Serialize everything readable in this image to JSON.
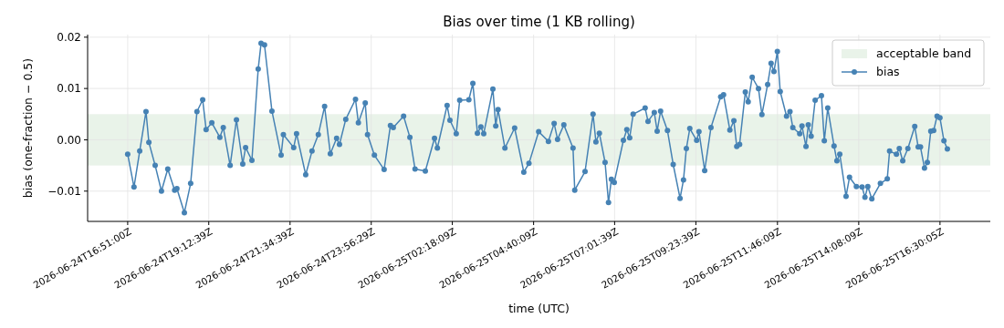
{
  "chart_data": {
    "type": "line",
    "title": "Bias over time (1 KB rolling)",
    "xlabel": "time (UTC)",
    "ylabel": "bias (one-fraction − 0.5)",
    "x": [
      "2026-06-24T16:51",
      "2026-06-24T17:02",
      "2026-06-24T17:12",
      "2026-06-24T17:23",
      "2026-06-24T17:28",
      "2026-06-24T17:39",
      "2026-06-24T17:50",
      "2026-06-24T18:01",
      "2026-06-24T18:13",
      "2026-06-24T18:17",
      "2026-06-24T18:30",
      "2026-06-24T18:41",
      "2026-06-24T18:52",
      "2026-06-24T19:02",
      "2026-06-24T19:08",
      "2026-06-24T19:18",
      "2026-06-24T19:32",
      "2026-06-24T19:38",
      "2026-06-24T19:50",
      "2026-06-24T20:01",
      "2026-06-24T20:12",
      "2026-06-24T20:17",
      "2026-06-24T20:28",
      "2026-06-24T20:39",
      "2026-06-24T20:44",
      "2026-06-24T20:50",
      "2026-06-24T21:03",
      "2026-06-24T21:19",
      "2026-06-24T21:23",
      "2026-06-24T21:41",
      "2026-06-24T21:46",
      "2026-06-24T22:02",
      "2026-06-24T22:13",
      "2026-06-24T22:24",
      "2026-06-24T22:35",
      "2026-06-24T22:45",
      "2026-06-24T22:56",
      "2026-06-24T23:01",
      "2026-06-24T23:12",
      "2026-06-24T23:29",
      "2026-06-24T23:34",
      "2026-06-24T23:46",
      "2026-06-24T23:50",
      "2026-06-25T00:02",
      "2026-06-25T00:19",
      "2026-06-25T00:30",
      "2026-06-25T00:35",
      "2026-06-25T00:53",
      "2026-06-25T01:04",
      "2026-06-25T01:13",
      "2026-06-25T01:31",
      "2026-06-25T01:47",
      "2026-06-25T01:52",
      "2026-06-25T02:09",
      "2026-06-25T02:14",
      "2026-06-25T02:25",
      "2026-06-25T02:31",
      "2026-06-25T02:47",
      "2026-06-25T02:54",
      "2026-06-25T03:02",
      "2026-06-25T03:08",
      "2026-06-25T03:13",
      "2026-06-25T03:29",
      "2026-06-25T03:34",
      "2026-06-25T03:38",
      "2026-06-25T03:50",
      "2026-06-25T04:07",
      "2026-06-25T04:23",
      "2026-06-25T04:32",
      "2026-06-25T04:49",
      "2026-06-25T05:06",
      "2026-06-25T05:16",
      "2026-06-25T05:22",
      "2026-06-25T05:33",
      "2026-06-25T05:49",
      "2026-06-25T05:52",
      "2026-06-25T06:10",
      "2026-06-25T06:24",
      "2026-06-25T06:29",
      "2026-06-25T06:35",
      "2026-06-25T06:45",
      "2026-06-25T06:51",
      "2026-06-25T06:56",
      "2026-06-25T07:01",
      "2026-06-25T07:17",
      "2026-06-25T07:23",
      "2026-06-25T07:28",
      "2026-06-25T07:34",
      "2026-06-25T07:55",
      "2026-06-25T08:00",
      "2026-06-25T08:11",
      "2026-06-25T08:16",
      "2026-06-25T08:22",
      "2026-06-25T08:34",
      "2026-06-25T08:44",
      "2026-06-25T08:56",
      "2026-06-25T09:02",
      "2026-06-25T09:07",
      "2026-06-25T09:13",
      "2026-06-25T09:25",
      "2026-06-25T09:29",
      "2026-06-25T09:39",
      "2026-06-25T09:50",
      "2026-06-25T10:07",
      "2026-06-25T10:12",
      "2026-06-25T10:23",
      "2026-06-25T10:30",
      "2026-06-25T10:35",
      "2026-06-25T10:40",
      "2026-06-25T10:50",
      "2026-06-25T10:55",
      "2026-06-25T11:02",
      "2026-06-25T11:13",
      "2026-06-25T11:19",
      "2026-06-25T11:29",
      "2026-06-25T11:35",
      "2026-06-25T11:40",
      "2026-06-25T11:46",
      "2026-06-25T11:51",
      "2026-06-25T12:02",
      "2026-06-25T12:08",
      "2026-06-25T12:13",
      "2026-06-25T12:25",
      "2026-06-25T12:29",
      "2026-06-25T12:36",
      "2026-06-25T12:40",
      "2026-06-25T12:45",
      "2026-06-25T12:52",
      "2026-06-25T13:03",
      "2026-06-25T13:08",
      "2026-06-25T13:14",
      "2026-06-25T13:25",
      "2026-06-25T13:30",
      "2026-06-25T13:35",
      "2026-06-25T13:46",
      "2026-06-25T13:52",
      "2026-06-25T14:04",
      "2026-06-25T14:14",
      "2026-06-25T14:19",
      "2026-06-25T14:24",
      "2026-06-25T14:31",
      "2026-06-25T14:46",
      "2026-06-25T14:58",
      "2026-06-25T15:02",
      "2026-06-25T15:14",
      "2026-06-25T15:19",
      "2026-06-25T15:25",
      "2026-06-25T15:34",
      "2026-06-25T15:46",
      "2026-06-25T15:52",
      "2026-06-25T15:56",
      "2026-06-25T16:03",
      "2026-06-25T16:08",
      "2026-06-25T16:14",
      "2026-06-25T16:19",
      "2026-06-25T16:25",
      "2026-06-25T16:30",
      "2026-06-25T16:37",
      "2026-06-25T16:43"
    ],
    "series": [
      {
        "name": "bias",
        "color": "#4682b4",
        "values": [
          -0.0028,
          -0.0092,
          -0.0022,
          0.0055,
          -0.0005,
          -0.005,
          -0.01,
          -0.0057,
          -0.0098,
          -0.0095,
          -0.0142,
          -0.0085,
          0.0055,
          0.0078,
          0.002,
          0.0033,
          0.0005,
          0.0024,
          -0.005,
          0.0039,
          -0.0047,
          -0.0015,
          -0.004,
          0.0138,
          0.0188,
          0.0185,
          0.0056,
          -0.003,
          0.001,
          -0.0015,
          0.0012,
          -0.0068,
          -0.0022,
          0.001,
          0.0065,
          -0.0027,
          0.0003,
          -0.0009,
          0.004,
          0.0079,
          0.0033,
          0.0072,
          0.001,
          -0.003,
          -0.0058,
          0.0028,
          0.0024,
          0.0046,
          0.0005,
          -0.0057,
          -0.0061,
          0.0003,
          -0.0016,
          0.0067,
          0.0038,
          0.0012,
          0.0077,
          0.0078,
          0.011,
          0.0013,
          0.0025,
          0.0012,
          0.0099,
          0.0027,
          0.0059,
          -0.0016,
          0.0023,
          -0.0063,
          -0.0046,
          0.0016,
          -0.0003,
          0.0032,
          0.0001,
          0.0029,
          -0.0016,
          -0.0098,
          -0.0062,
          0.005,
          -0.0004,
          0.0013,
          -0.0044,
          -0.0122,
          -0.0077,
          -0.0083,
          -0.0001,
          0.002,
          0.0004,
          0.005,
          0.0062,
          0.0036,
          0.0053,
          0.0017,
          0.0056,
          0.0018,
          -0.0048,
          -0.0114,
          -0.0078,
          -0.0017,
          0.0022,
          -0.0001,
          0.0016,
          -0.006,
          0.0024,
          0.0084,
          0.0088,
          0.0019,
          0.0037,
          -0.0013,
          -0.0009,
          0.0093,
          0.0074,
          0.0122,
          0.01,
          0.0049,
          0.0108,
          0.0149,
          0.0133,
          0.0172,
          0.0094,
          0.0046,
          0.0055,
          0.0024,
          0.0012,
          0.0027,
          -0.0013,
          0.0029,
          0.0007,
          0.0077,
          0.0086,
          -0.0002,
          0.0062,
          -0.0012,
          -0.0041,
          -0.0028,
          -0.011,
          -0.0073,
          -0.0091,
          -0.0092,
          -0.0112,
          -0.0091,
          -0.0115,
          -0.0085,
          -0.0076,
          -0.0022,
          -0.0028,
          -0.0017,
          -0.0041,
          -0.0017,
          0.0026,
          -0.0014,
          -0.0014,
          -0.0055,
          -0.0044,
          0.0017,
          0.0018,
          0.0046,
          0.0043,
          -0.0002,
          -0.0018
        ]
      }
    ],
    "xlim": [
      "2026-06-24T15:41",
      "2026-06-25T17:58"
    ],
    "xticks": [
      {
        "value": "2026-06-24T16:51:00",
        "label": "2026-06-24T16:51:00Z"
      },
      {
        "value": "2026-06-24T19:12:39",
        "label": "2026-06-24T19:12:39Z"
      },
      {
        "value": "2026-06-24T21:34:39",
        "label": "2026-06-24T21:34:39Z"
      },
      {
        "value": "2026-06-24T23:56:29",
        "label": "2026-06-24T23:56:29Z"
      },
      {
        "value": "2026-06-25T02:18:09",
        "label": "2026-06-25T02:18:09Z"
      },
      {
        "value": "2026-06-25T04:40:09",
        "label": "2026-06-25T04:40:09Z"
      },
      {
        "value": "2026-06-25T07:01:39",
        "label": "2026-06-25T07:01:39Z"
      },
      {
        "value": "2026-06-25T09:23:39",
        "label": "2026-06-25T09:23:39Z"
      },
      {
        "value": "2026-06-25T11:46:09",
        "label": "2026-06-25T11:46:09Z"
      },
      {
        "value": "2026-06-25T14:08:09",
        "label": "2026-06-25T14:08:09Z"
      },
      {
        "value": "2026-06-25T16:30:05",
        "label": "2026-06-25T16:30:05Z"
      }
    ],
    "ylim": [
      -0.0159,
      0.0205
    ],
    "yticks": [
      {
        "value": -0.01,
        "label": "−0.01"
      },
      {
        "value": 0,
        "label": "0.00"
      },
      0.01,
      0.02
    ],
    "bands": [
      {
        "axis": "y",
        "from": -0.005,
        "to": 0.005,
        "label": "acceptable band",
        "color": "#e9f3e9"
      }
    ],
    "grid": true,
    "legend": "top right",
    "marker": "circle",
    "line_style": "solid"
  }
}
